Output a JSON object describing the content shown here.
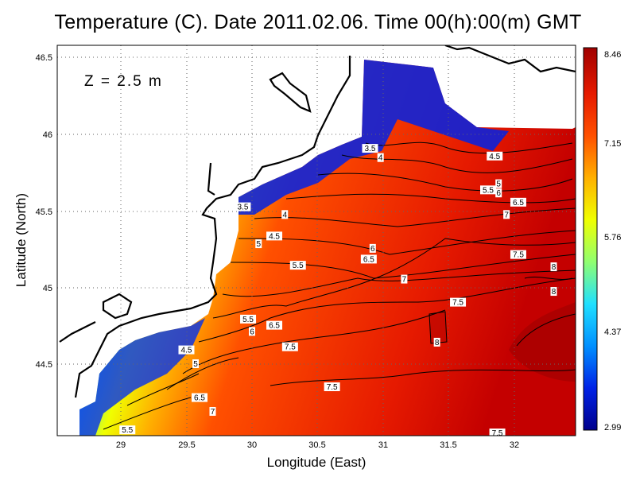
{
  "title": "Temperature (C). Date 2011.02.06. Time 00(h):00(m) GMT",
  "depth_label": "Z = 2.5 m",
  "xlabel": "Longitude (East)",
  "ylabel": "Latitude (North)",
  "x_ticks": [
    "29",
    "29.5",
    "30",
    "30.5",
    "31",
    "31.5",
    "32"
  ],
  "y_ticks": [
    "46.5",
    "46",
    "45.5",
    "45",
    "44.5"
  ],
  "colorbar": {
    "min": "2.99",
    "max": "8.46",
    "labels": [
      "8.46",
      "7.15",
      "5.76",
      "4.37",
      "2.99"
    ],
    "stops": [
      "#00008c",
      "#0022e6",
      "#0090ff",
      "#20e0ff",
      "#90ff70",
      "#f0ff00",
      "#ffb000",
      "#ff5000",
      "#e61a00",
      "#a00000"
    ]
  },
  "contour_labels": [
    {
      "text": "3.5",
      "lon": 30.9,
      "lat": 45.9
    },
    {
      "text": "4",
      "lon": 30.98,
      "lat": 45.84
    },
    {
      "text": "4.5",
      "lon": 31.85,
      "lat": 45.85
    },
    {
      "text": "5",
      "lon": 31.88,
      "lat": 45.67
    },
    {
      "text": "5.5",
      "lon": 31.8,
      "lat": 45.63
    },
    {
      "text": "6",
      "lon": 31.88,
      "lat": 45.61
    },
    {
      "text": "6.5",
      "lon": 32.03,
      "lat": 45.55
    },
    {
      "text": "7",
      "lon": 31.94,
      "lat": 45.47
    },
    {
      "text": "7.5",
      "lon": 32.03,
      "lat": 45.21
    },
    {
      "text": "8",
      "lon": 32.3,
      "lat": 45.13
    },
    {
      "text": "8",
      "lon": 32.3,
      "lat": 44.97
    },
    {
      "text": "3.5",
      "lon": 29.93,
      "lat": 45.52
    },
    {
      "text": "4",
      "lon": 30.25,
      "lat": 45.47
    },
    {
      "text": "4.5",
      "lon": 30.17,
      "lat": 45.33
    },
    {
      "text": "5",
      "lon": 30.05,
      "lat": 45.28
    },
    {
      "text": "5.5",
      "lon": 30.35,
      "lat": 45.14
    },
    {
      "text": "6",
      "lon": 30.92,
      "lat": 45.25
    },
    {
      "text": "6.5",
      "lon": 30.89,
      "lat": 45.18
    },
    {
      "text": "7",
      "lon": 31.16,
      "lat": 45.05
    },
    {
      "text": "7.5",
      "lon": 31.57,
      "lat": 44.9
    },
    {
      "text": "8",
      "lon": 31.41,
      "lat": 44.64
    },
    {
      "text": "5.5",
      "lon": 29.97,
      "lat": 44.79
    },
    {
      "text": "6",
      "lon": 30.0,
      "lat": 44.71
    },
    {
      "text": "6.5",
      "lon": 30.17,
      "lat": 44.75
    },
    {
      "text": "7.5",
      "lon": 30.29,
      "lat": 44.61
    },
    {
      "text": "4.5",
      "lon": 29.5,
      "lat": 44.59
    },
    {
      "text": "5",
      "lon": 29.57,
      "lat": 44.5
    },
    {
      "text": "7.5",
      "lon": 30.61,
      "lat": 44.35
    },
    {
      "text": "6.5",
      "lon": 29.6,
      "lat": 44.28
    },
    {
      "text": "7",
      "lon": 29.7,
      "lat": 44.19
    },
    {
      "text": "5.5",
      "lon": 29.05,
      "lat": 44.07
    },
    {
      "text": "7.5",
      "lon": 31.87,
      "lat": 44.05
    }
  ]
}
